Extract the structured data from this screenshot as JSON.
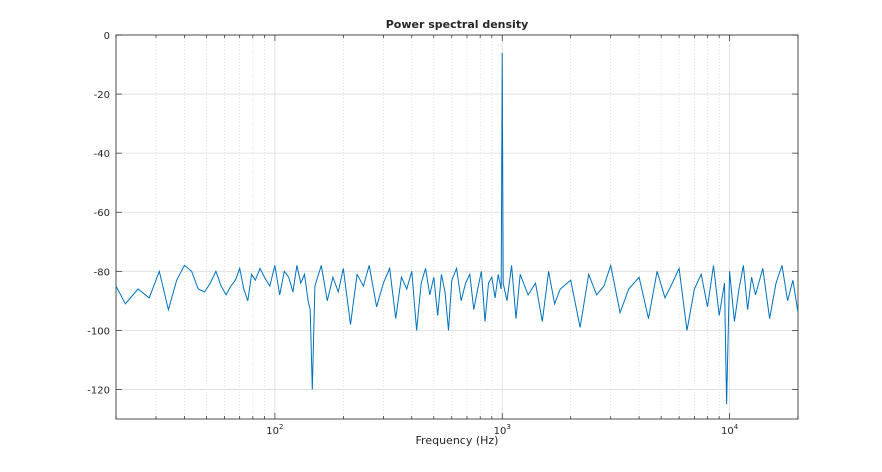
{
  "chart_data": {
    "type": "line",
    "title": "Power spectral density",
    "xlabel": "Frequency (Hz)",
    "ylabel": "",
    "x_scale": "log",
    "xlim": [
      20,
      20000
    ],
    "ylim": [
      -130,
      0
    ],
    "grid": true,
    "x_ticks": [
      {
        "base": "10",
        "exp": "2",
        "value": 100
      },
      {
        "base": "10",
        "exp": "3",
        "value": 1000
      },
      {
        "base": "10",
        "exp": "4",
        "value": 10000
      }
    ],
    "y_ticks": [
      {
        "label": "0",
        "value": 0
      },
      {
        "label": "-20",
        "value": -20
      },
      {
        "label": "-40",
        "value": -40
      },
      {
        "label": "-60",
        "value": -60
      },
      {
        "label": "-80",
        "value": -80
      },
      {
        "label": "-100",
        "value": -100
      },
      {
        "label": "-120",
        "value": -120
      }
    ],
    "line_color": "#0072bd",
    "series": [
      {
        "x": [
          20,
          22,
          25,
          28,
          31,
          34,
          37,
          40,
          43,
          46,
          49,
          52,
          55,
          58,
          61,
          64,
          67,
          70,
          73,
          76,
          79,
          82,
          86,
          90,
          95,
          100,
          105,
          110,
          115,
          120,
          125,
          130,
          135,
          140,
          143,
          146,
          150,
          160,
          170,
          180,
          190,
          200,
          215,
          230,
          245,
          260,
          280,
          300,
          320,
          340,
          360,
          380,
          400,
          420,
          440,
          460,
          480,
          500,
          520,
          540,
          560,
          580,
          600,
          630,
          660,
          690,
          720,
          750,
          780,
          810,
          840,
          870,
          900,
          930,
          960,
          990,
          1000,
          1010,
          1050,
          1100,
          1150,
          1200,
          1300,
          1400,
          1500,
          1600,
          1700,
          1800,
          2000,
          2200,
          2400,
          2600,
          2800,
          3000,
          3300,
          3600,
          4000,
          4400,
          4800,
          5200,
          5600,
          6000,
          6500,
          7000,
          7500,
          8000,
          8500,
          9000,
          9500,
          9700,
          10000,
          10500,
          11000,
          11500,
          12000,
          12500,
          13000,
          14000,
          15000,
          16000,
          17000,
          18000,
          19000,
          20000
        ],
        "values": [
          -85,
          -91,
          -86,
          -89,
          -80,
          -93,
          -83,
          -78,
          -80,
          -86,
          -87,
          -84,
          -80,
          -85,
          -88,
          -85,
          -83,
          -79,
          -86,
          -90,
          -81,
          -83,
          -79,
          -82,
          -85,
          -78,
          -88,
          -80,
          -82,
          -87,
          -78,
          -84,
          -81,
          -90,
          -93,
          -120,
          -85,
          -78,
          -90,
          -82,
          -87,
          -79,
          -98,
          -81,
          -85,
          -78,
          -92,
          -84,
          -79,
          -96,
          -82,
          -86,
          -80,
          -100,
          -84,
          -79,
          -88,
          -82,
          -95,
          -81,
          -87,
          -100,
          -83,
          -79,
          -90,
          -84,
          -81,
          -93,
          -86,
          -80,
          -97,
          -84,
          -82,
          -89,
          -81,
          -86,
          -6,
          -84,
          -90,
          -78,
          -96,
          -81,
          -88,
          -84,
          -97,
          -80,
          -91,
          -86,
          -83,
          -99,
          -81,
          -88,
          -85,
          -78,
          -94,
          -86,
          -82,
          -96,
          -80,
          -89,
          -84,
          -79,
          -100,
          -86,
          -81,
          -92,
          -78,
          -95,
          -84,
          -125,
          -80,
          -97,
          -86,
          -78,
          -93,
          -82,
          -88,
          -79,
          -96,
          -84,
          -78,
          -90,
          -83,
          -94
        ]
      }
    ]
  }
}
